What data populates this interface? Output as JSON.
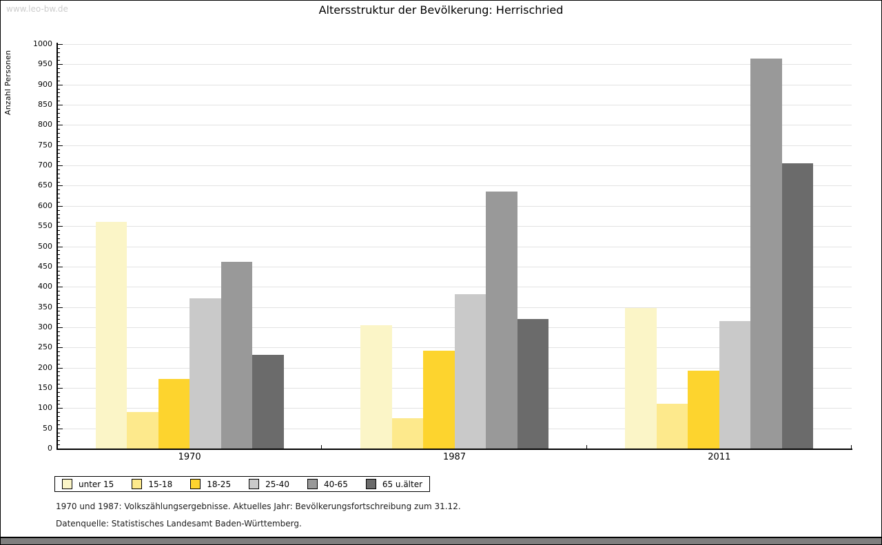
{
  "watermark": "www.leo-bw.de",
  "chart_data": {
    "type": "bar",
    "title": "Altersstruktur der Bevölkerung: Herrischried",
    "ylabel": "Anzahl Personen",
    "xlabel": "",
    "categories": [
      "1970",
      "1987",
      "2011"
    ],
    "series": [
      {
        "name": "unter 15",
        "color": "#fbf5c7",
        "values": [
          560,
          305,
          348
        ]
      },
      {
        "name": "15-18",
        "color": "#fde98c",
        "values": [
          90,
          75,
          110
        ]
      },
      {
        "name": "18-25",
        "color": "#fdd42e",
        "values": [
          172,
          242,
          193
        ]
      },
      {
        "name": "25-40",
        "color": "#c9c9c9",
        "values": [
          371,
          382,
          315
        ]
      },
      {
        "name": "40-65",
        "color": "#999999",
        "values": [
          462,
          635,
          965
        ]
      },
      {
        "name": "65 u.älter",
        "color": "#6b6b6b",
        "values": [
          232,
          320,
          705
        ]
      }
    ],
    "ylim": [
      0,
      1000
    ],
    "ytick_step": 50,
    "minor_tick_step": 10,
    "grid": true,
    "legend_position": "bottom"
  },
  "footnotes": {
    "line1": "1970 und 1987: Volkszählungsergebnisse. Aktuelles Jahr: Bevölkerungsfortschreibung zum 31.12.",
    "line2": "Datenquelle: Statistisches Landesamt Baden-Württemberg."
  },
  "colors": {
    "gridline": "#e2e2e2",
    "axis": "#000000",
    "watermark": "#cccccc",
    "bottom_strip": "#7f7f7f"
  }
}
